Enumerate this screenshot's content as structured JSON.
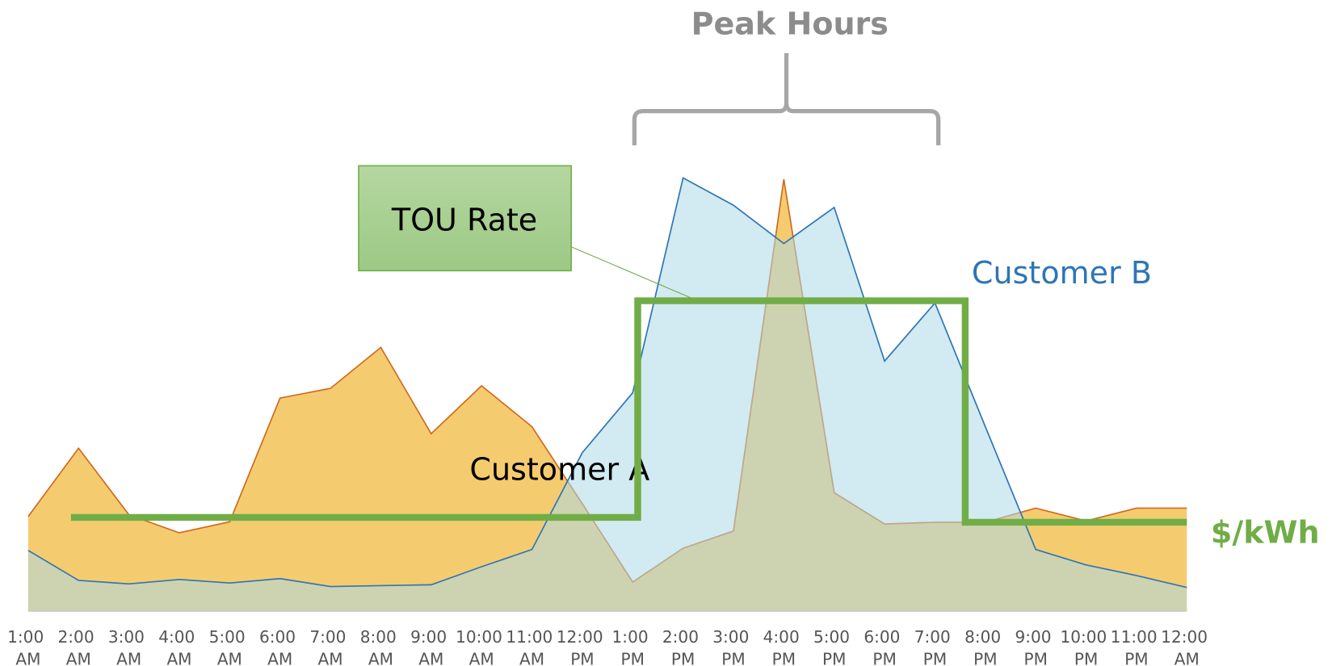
{
  "chart_data": {
    "type": "area",
    "title": "Peak Hours",
    "categories": [
      "1:00 AM",
      "2:00 AM",
      "3:00 AM",
      "4:00 AM",
      "5:00 AM",
      "6:00 AM",
      "7:00 AM",
      "8:00 AM",
      "9:00 AM",
      "10:00 AM",
      "11:00 AM",
      "12:00 PM",
      "1:00 PM",
      "2:00 PM",
      "3:00 PM",
      "4:00 PM",
      "5:00 PM",
      "6:00 PM",
      "7:00 PM",
      "8:00 PM",
      "9:00 PM",
      "10:00 PM",
      "11:00 PM",
      "12:00 AM"
    ],
    "ylim": [
      0,
      100
    ],
    "series": [
      {
        "name": "Customer A",
        "color": "#f4cc6f",
        "line_color": "#d06a21",
        "values": [
          21.5,
          37,
          21.9,
          17.8,
          20.3,
          48.4,
          50.6,
          59.9,
          40.3,
          51.2,
          41.9,
          24.4,
          6.6,
          14.3,
          18.2,
          98.1,
          26.9,
          19.8,
          20.2,
          20.2,
          23.4,
          20.5,
          23.4,
          23.4
        ]
      },
      {
        "name": "Customer B",
        "color": "#add8e6",
        "line_color": "#2e75b6",
        "values": [
          13.8,
          7.0,
          6.2,
          7.2,
          6.4,
          7.4,
          5.6,
          5.8,
          6.0,
          10.1,
          14.0,
          36.0,
          49.6,
          98.4,
          92.2,
          83.5,
          91.7,
          56.8,
          70.0,
          41.9,
          14.0,
          10.5,
          8.1,
          5.4
        ]
      }
    ],
    "tou_rate": {
      "label": "TOU Rate",
      "unit_label": "$/kWh",
      "color": "#70ad47",
      "segments": [
        {
          "start": 0.85,
          "end": 12.1,
          "value": 21.3
        },
        {
          "start": 12.1,
          "end": 18.6,
          "value": 70.5
        },
        {
          "start": 18.6,
          "end": 23,
          "value": 20.2
        }
      ]
    },
    "peak_range": [
      12,
      18
    ]
  }
}
